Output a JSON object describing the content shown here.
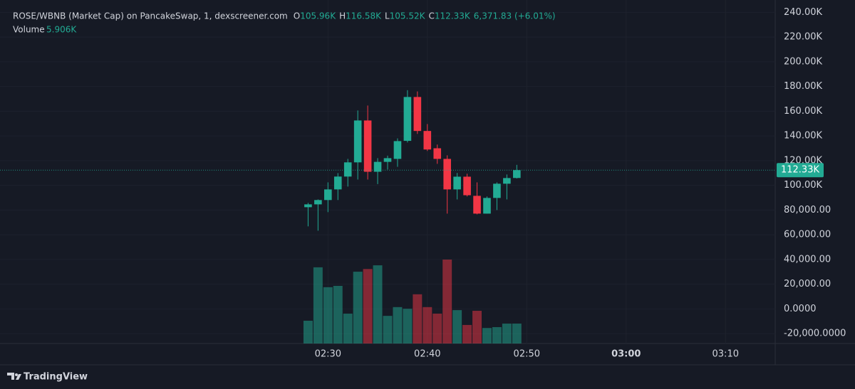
{
  "chart_data": {
    "type": "candlestick",
    "title": "ROSE/WBNB (Market Cap) on PancakeSwap, 1, dexscreener.com",
    "ohlc_legend": [
      {
        "key": "O",
        "text": "105.96K"
      },
      {
        "key": "H",
        "text": "116.58K"
      },
      {
        "key": "L",
        "text": "105.52K"
      },
      {
        "key": "C",
        "text": "112.33K"
      }
    ],
    "change": "6,371.83 (+6.01%)",
    "volume_title": "Volume",
    "volume_text": "5.906K",
    "x": [
      "02:28",
      "02:29",
      "02:30",
      "02:31",
      "02:32",
      "02:33",
      "02:34",
      "02:35",
      "02:36",
      "02:37",
      "02:38",
      "02:39",
      "02:40",
      "02:41",
      "02:42",
      "02:43",
      "02:44",
      "02:45",
      "02:46",
      "02:47",
      "02:48",
      "02:49"
    ],
    "open": [
      82300,
      84600,
      88100,
      96700,
      107100,
      118600,
      152500,
      111000,
      119000,
      121400,
      136000,
      171500,
      144000,
      130000,
      121400,
      96700,
      107000,
      91500,
      77100,
      89800,
      101300,
      105960
    ],
    "high": [
      85800,
      88600,
      102400,
      109900,
      121400,
      160600,
      164600,
      122000,
      124000,
      138000,
      177000,
      176000,
      149600,
      133000,
      124300,
      110000,
      109400,
      102400,
      91000,
      102400,
      108800,
      116580
    ],
    "low": [
      66800,
      63300,
      78300,
      88100,
      99000,
      104700,
      104700,
      101000,
      112800,
      115000,
      134700,
      141600,
      127800,
      117400,
      77100,
      88600,
      91000,
      76500,
      77100,
      80000,
      88600,
      105520
    ],
    "close": [
      84600,
      88100,
      96700,
      107100,
      118600,
      152500,
      111000,
      119000,
      122000,
      135800,
      171500,
      144000,
      129000,
      121400,
      96700,
      107000,
      92000,
      77100,
      89800,
      101300,
      105900,
      112330
    ],
    "volume": [
      6750,
      22600,
      16700,
      17100,
      8860,
      21300,
      22100,
      23200,
      8200,
      10800,
      10300,
      14600,
      10800,
      8860,
      24900,
      9900,
      5500,
      9700,
      4600,
      4850,
      5900,
      5906
    ],
    "up_color": "#22ab94",
    "down_color": "#f23645",
    "ylim": [
      -28000,
      250000
    ],
    "yticks": [
      {
        "value": 240000,
        "label": "240.00K"
      },
      {
        "value": 220000,
        "label": "220.00K"
      },
      {
        "value": 200000,
        "label": "200.00K"
      },
      {
        "value": 180000,
        "label": "180.00K"
      },
      {
        "value": 160000,
        "label": "160.00K"
      },
      {
        "value": 140000,
        "label": "140.00K"
      },
      {
        "value": 120000,
        "label": "120.00K"
      },
      {
        "value": 100000,
        "label": "100.00K"
      },
      {
        "value": 80000,
        "label": "80,000.00"
      },
      {
        "value": 60000,
        "label": "60,000.00"
      },
      {
        "value": 40000,
        "label": "40,000.00"
      },
      {
        "value": 20000,
        "label": "20,000.00"
      },
      {
        "value": 0,
        "label": "0.0000"
      },
      {
        "value": -20000,
        "label": "-20,000.0000"
      }
    ],
    "xlim": [
      "01:57",
      "03:15"
    ],
    "xticks": [
      "02:30",
      "02:40",
      "02:50",
      "03:00",
      "03:10"
    ],
    "last_price": {
      "value": 112330,
      "label": "112.33K"
    },
    "grid": true,
    "brand": "TradingView"
  }
}
